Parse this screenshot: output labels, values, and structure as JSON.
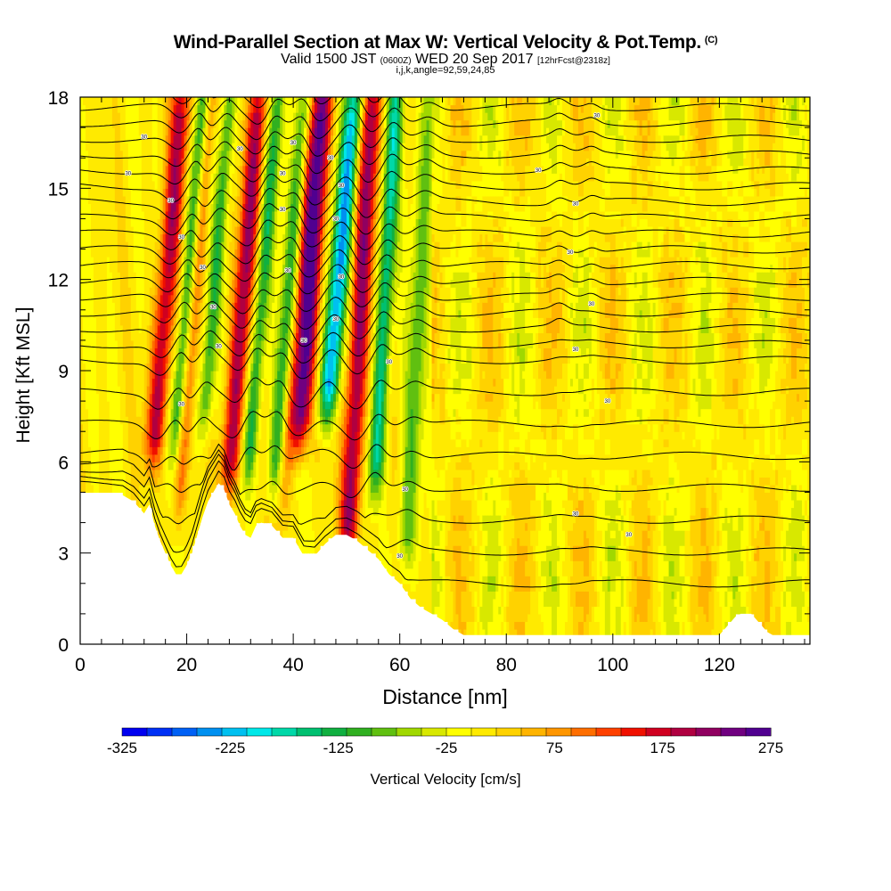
{
  "header": {
    "title": "Wind-Parallel Section at Max W: Vertical Velocity & Pot.Temp.",
    "copyright_mark": "(C)",
    "subtitle_prefix": "Valid 1500 JST",
    "subtitle_utc": "(0600Z)",
    "subtitle_date": "WED 20 Sep 2017",
    "subtitle_forecast": "[12hrFcst@2318z]",
    "grid_info": "i,j,k,angle=92,59,24,85"
  },
  "chart_data": {
    "type": "heatmap",
    "title": "Wind-Parallel Section at Max W: Vertical Velocity & Pot.Temp.",
    "xlabel": "Distance [nm]",
    "ylabel": "Height [Kft MSL]",
    "xlim": [
      0,
      137
    ],
    "ylim": [
      0,
      18
    ],
    "x_ticks": [
      0,
      20,
      40,
      60,
      80,
      100,
      120
    ],
    "y_ticks": [
      0,
      3,
      6,
      9,
      12,
      15,
      18
    ],
    "colorbar": {
      "label": "Vertical Velocity [cm/s]",
      "tick_labels": [
        "-325",
        "-225",
        "-125",
        "-25",
        "75",
        "175",
        "275"
      ],
      "tick_values": [
        -325,
        -225,
        -125,
        -25,
        75,
        175,
        275
      ],
      "range": [
        -325,
        275
      ],
      "colors": [
        "#0000f0",
        "#0030f5",
        "#0060f5",
        "#0090f0",
        "#00c0f0",
        "#00e8e8",
        "#00d8a8",
        "#00c070",
        "#10b040",
        "#30b020",
        "#60c010",
        "#a0d800",
        "#d8e800",
        "#ffff00",
        "#ffea00",
        "#ffd200",
        "#ffb400",
        "#ff9600",
        "#ff6e00",
        "#ff4000",
        "#f01000",
        "#d00020",
        "#b00040",
        "#900060",
        "#700080",
        "#500090"
      ]
    },
    "terrain_kft": {
      "x": [
        0,
        8,
        10,
        11,
        12,
        13,
        14,
        15,
        16,
        17,
        18,
        19,
        20,
        21,
        22,
        23,
        24,
        25,
        26,
        27,
        28,
        29,
        30,
        31,
        32,
        33,
        34,
        36,
        38,
        40,
        42,
        44,
        46,
        48,
        50,
        52,
        54,
        56,
        58,
        60,
        62,
        64,
        66,
        68,
        70,
        72,
        80,
        90,
        100,
        110,
        118,
        120,
        121,
        122,
        123,
        124,
        125,
        126,
        127,
        128,
        129,
        130,
        135,
        137
      ],
      "y": [
        4.9,
        4.9,
        4.7,
        4.5,
        4.3,
        4.6,
        3.9,
        3.4,
        3.0,
        2.6,
        2.3,
        2.3,
        2.6,
        3.0,
        3.6,
        4.2,
        4.7,
        5.0,
        5.3,
        5.1,
        4.6,
        4.3,
        3.9,
        3.6,
        3.5,
        3.9,
        4.0,
        3.9,
        3.5,
        3.5,
        2.9,
        2.9,
        3.3,
        3.6,
        3.6,
        3.4,
        3.1,
        2.8,
        2.3,
        2.0,
        1.5,
        1.2,
        1.0,
        0.8,
        0.5,
        0.3,
        0.3,
        0.3,
        0.3,
        0.3,
        0.3,
        0.3,
        0.5,
        0.7,
        0.9,
        1.0,
        1.0,
        1.0,
        0.8,
        0.6,
        0.4,
        0.3,
        0.3,
        0.3
      ]
    },
    "vertical_velocity_bands": [
      {
        "x": 15.0,
        "w": 1.9,
        "amp": 185,
        "tilt": 0.45,
        "bottom": 6.0
      },
      {
        "x": 19.0,
        "w": 1.4,
        "amp": -120,
        "tilt": 0.45,
        "bottom": 6.5
      },
      {
        "x": 20.5,
        "w": 1.2,
        "amp": 95,
        "tilt": 0.45,
        "bottom": 4.0
      },
      {
        "x": 24.0,
        "w": 1.3,
        "amp": -110,
        "tilt": 0.45,
        "bottom": 7.0
      },
      {
        "x": 29.5,
        "w": 1.8,
        "amp": 200,
        "tilt": 0.45,
        "bottom": 5.0
      },
      {
        "x": 33.0,
        "w": 1.4,
        "amp": -130,
        "tilt": 0.45,
        "bottom": 5.5
      },
      {
        "x": 38.0,
        "w": 1.5,
        "amp": -115,
        "tilt": 0.45,
        "bottom": 5.0
      },
      {
        "x": 40.0,
        "w": 1.3,
        "amp": 60,
        "tilt": 0.45,
        "bottom": 4.0
      },
      {
        "x": 42.0,
        "w": 1.9,
        "amp": 255,
        "tilt": 0.4,
        "bottom": 6.5
      },
      {
        "x": 47.0,
        "w": 1.8,
        "amp": -240,
        "tilt": 0.5,
        "bottom": 7.5
      },
      {
        "x": 52.0,
        "w": 1.9,
        "amp": 210,
        "tilt": 0.3,
        "bottom": 3.0
      },
      {
        "x": 56.5,
        "w": 1.5,
        "amp": -170,
        "tilt": 0.3,
        "bottom": 5.0
      },
      {
        "x": 63.0,
        "w": 1.8,
        "amp": -90,
        "tilt": 0.3,
        "bottom": 2.5
      },
      {
        "x": 90.0,
        "w": 1.4,
        "amp": -70,
        "tilt": 0.0,
        "bottom": 10.0
      },
      {
        "x": 96.0,
        "w": 1.3,
        "amp": -55,
        "tilt": 0.0,
        "bottom": 11.0
      }
    ],
    "theta_label_text": "30"
  }
}
